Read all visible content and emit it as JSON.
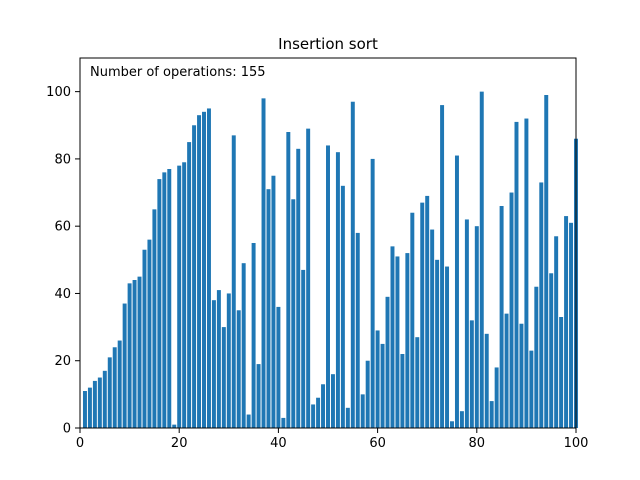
{
  "chart_data": {
    "type": "bar",
    "title": "Insertion sort",
    "xlabel": "",
    "ylabel": "",
    "xlim": [
      0,
      100
    ],
    "ylim": [
      0,
      110
    ],
    "x_ticks": [
      0,
      20,
      40,
      60,
      80,
      100
    ],
    "y_ticks": [
      0,
      20,
      40,
      60,
      80,
      100
    ],
    "grid": false,
    "bar_color": "#1f77b4",
    "annotation_text": "Number of operations: 155",
    "values": [
      11,
      12,
      14,
      15,
      17,
      21,
      24,
      26,
      37,
      43,
      44,
      45,
      53,
      56,
      65,
      74,
      76,
      77,
      1,
      78,
      79,
      85,
      90,
      93,
      94,
      95,
      38,
      41,
      30,
      40,
      87,
      35,
      49,
      4,
      55,
      19,
      98,
      71,
      75,
      36,
      3,
      88,
      68,
      83,
      47,
      89,
      7,
      9,
      13,
      84,
      16,
      82,
      72,
      6,
      97,
      58,
      10,
      20,
      80,
      29,
      25,
      39,
      54,
      51,
      22,
      52,
      64,
      27,
      67,
      69,
      59,
      50,
      96,
      48,
      2,
      81,
      5,
      62,
      32,
      60,
      100,
      28,
      8,
      18,
      66,
      34,
      70,
      91,
      31,
      92,
      23,
      42,
      73,
      99,
      46,
      57,
      33,
      63,
      61,
      86
    ]
  }
}
